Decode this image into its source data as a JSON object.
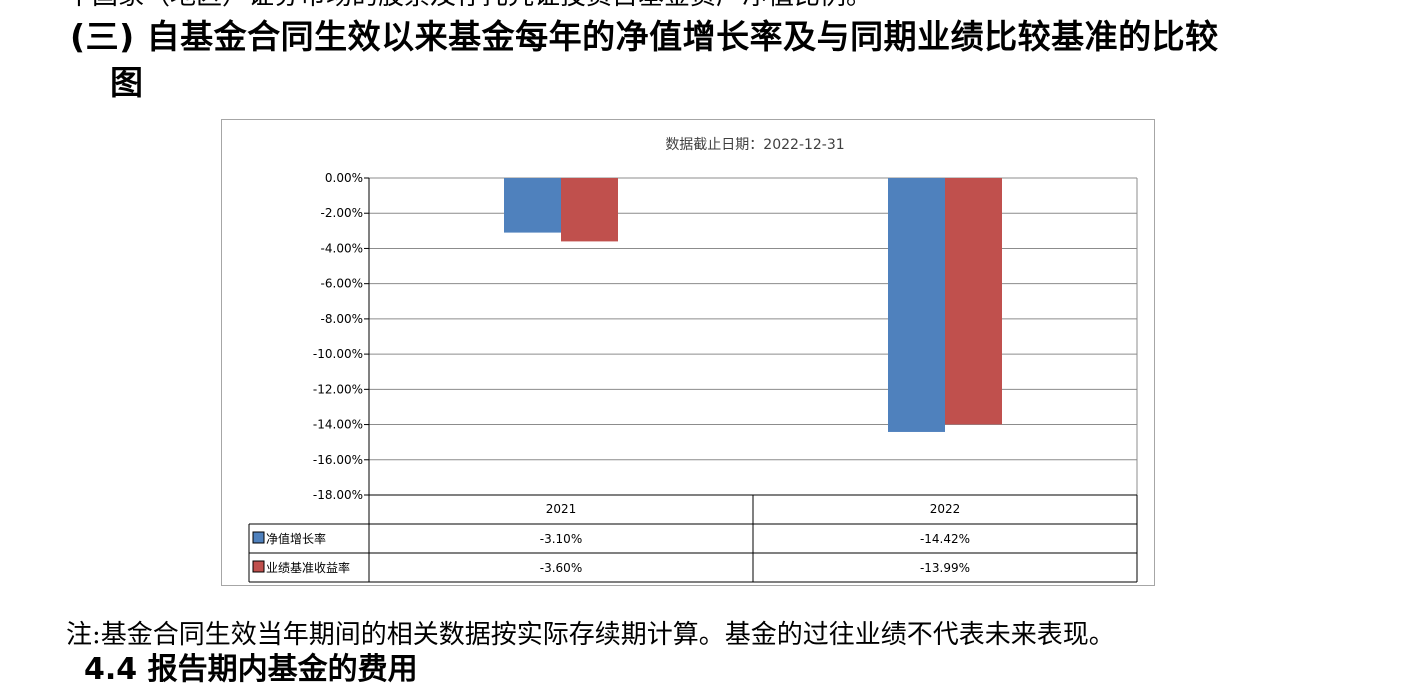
{
  "document": {
    "cut_top_text": "中国家（地区）证券市场的股票及存托凭证投资占基金资产净值比例。",
    "heading_line1": "(三) 自基金合同生效以来基金每年的净值增长率及与同期业绩比较基准的比较",
    "heading_line2": "图",
    "note": "注:基金合同生效当年期间的相关数据按实际存续期计算。基金的过往业绩不代表未来表现。",
    "cut_bottom_text": "4.4  报告期内基金的费用"
  },
  "chart_data": {
    "type": "bar",
    "title": "数据截止日期：2022-12-31",
    "categories": [
      "2021",
      "2022"
    ],
    "series": [
      {
        "name": "净值增长率",
        "values": [
          -3.1,
          -14.42
        ],
        "labels": [
          "-3.10%",
          "-14.42%"
        ],
        "color": "#4f81bd"
      },
      {
        "name": "业绩基准收益率",
        "values": [
          -3.6,
          -13.99
        ],
        "labels": [
          "-3.60%",
          "-13.99%"
        ],
        "color": "#c0504d"
      }
    ],
    "ylim": [
      -18,
      0
    ],
    "yticks": [
      "0.00%",
      "-2.00%",
      "-4.00%",
      "-6.00%",
      "-8.00%",
      "-10.00%",
      "-12.00%",
      "-14.00%",
      "-16.00%",
      "-18.00%"
    ],
    "grid": true,
    "legend": "data table below chart",
    "xlabel": "",
    "ylabel": ""
  }
}
